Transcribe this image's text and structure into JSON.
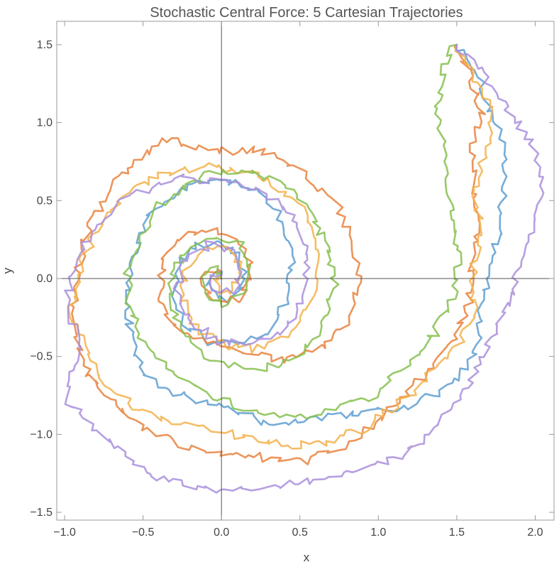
{
  "chart_data": {
    "type": "line",
    "title": "Stochastic Central Force: 5 Cartesian Trajectories",
    "xlabel": "x",
    "ylabel": "y",
    "xlim": [
      -1.05,
      2.12
    ],
    "ylim": [
      -1.55,
      1.65
    ],
    "xticks": [
      -1.0,
      -0.5,
      0.0,
      0.5,
      1.0,
      1.5,
      2.0
    ],
    "xtick_labels": [
      "−1.0",
      "−0.5",
      "0.0",
      "0.5",
      "1.0",
      "1.5",
      "2.0"
    ],
    "yticks": [
      -1.5,
      -1.0,
      -0.5,
      0.0,
      0.5,
      1.0,
      1.5
    ],
    "ytick_labels": [
      "−1.5",
      "−1.0",
      "−0.5",
      "0.0",
      "0.5",
      "1.0",
      "1.5"
    ],
    "grid": false,
    "axes_through_origin": true,
    "series": [
      {
        "color": "#5e9fd1",
        "start": [
          1.5,
          1.5
        ],
        "points": [
          [
            1.5,
            1.5
          ],
          [
            1.6,
            1.38
          ],
          [
            1.7,
            1.12
          ],
          [
            1.78,
            0.92
          ],
          [
            1.8,
            0.62
          ],
          [
            1.78,
            0.38
          ],
          [
            1.72,
            0.1
          ],
          [
            1.66,
            -0.2
          ],
          [
            1.62,
            -0.48
          ],
          [
            1.5,
            -0.66
          ],
          [
            1.35,
            -0.75
          ],
          [
            1.15,
            -0.85
          ],
          [
            0.95,
            -0.86
          ],
          [
            0.75,
            -0.88
          ],
          [
            0.55,
            -0.9
          ],
          [
            0.35,
            -0.95
          ],
          [
            0.1,
            -0.85
          ],
          [
            -0.15,
            -0.78
          ],
          [
            -0.35,
            -0.72
          ],
          [
            -0.5,
            -0.6
          ],
          [
            -0.58,
            -0.38
          ],
          [
            -0.6,
            -0.1
          ],
          [
            -0.55,
            0.18
          ],
          [
            -0.45,
            0.42
          ],
          [
            -0.25,
            0.58
          ],
          [
            0.0,
            0.64
          ],
          [
            0.22,
            0.58
          ],
          [
            0.38,
            0.4
          ],
          [
            0.45,
            0.15
          ],
          [
            0.42,
            -0.12
          ],
          [
            0.32,
            -0.32
          ],
          [
            0.15,
            -0.42
          ],
          [
            -0.05,
            -0.42
          ],
          [
            -0.22,
            -0.32
          ],
          [
            -0.3,
            -0.12
          ],
          [
            -0.28,
            0.08
          ],
          [
            -0.18,
            0.2
          ],
          [
            -0.05,
            0.24
          ],
          [
            0.08,
            0.18
          ],
          [
            0.14,
            0.05
          ],
          [
            0.12,
            -0.08
          ],
          [
            0.02,
            -0.14
          ],
          [
            -0.06,
            -0.1
          ],
          [
            -0.08,
            -0.02
          ],
          [
            -0.04,
            0.04
          ],
          [
            0.0,
            0.02
          ]
        ]
      },
      {
        "color": "#e9833e",
        "start": [
          1.5,
          1.5
        ],
        "points": [
          [
            1.5,
            1.5
          ],
          [
            1.58,
            1.3
          ],
          [
            1.66,
            1.08
          ],
          [
            1.6,
            0.85
          ],
          [
            1.6,
            0.6
          ],
          [
            1.65,
            0.35
          ],
          [
            1.6,
            0.1
          ],
          [
            1.58,
            -0.15
          ],
          [
            1.48,
            -0.4
          ],
          [
            1.3,
            -0.6
          ],
          [
            1.1,
            -0.82
          ],
          [
            0.9,
            -1.0
          ],
          [
            0.7,
            -1.1
          ],
          [
            0.5,
            -1.18
          ],
          [
            0.28,
            -1.15
          ],
          [
            0.05,
            -1.12
          ],
          [
            -0.2,
            -1.08
          ],
          [
            -0.45,
            -0.98
          ],
          [
            -0.68,
            -0.82
          ],
          [
            -0.85,
            -0.6
          ],
          [
            -0.95,
            -0.3
          ],
          [
            -0.92,
            0.05
          ],
          [
            -0.82,
            0.4
          ],
          [
            -0.62,
            0.7
          ],
          [
            -0.35,
            0.9
          ],
          [
            -0.05,
            0.82
          ],
          [
            0.25,
            0.82
          ],
          [
            0.5,
            0.7
          ],
          [
            0.72,
            0.5
          ],
          [
            0.85,
            0.22
          ],
          [
            0.88,
            -0.05
          ],
          [
            0.8,
            -0.28
          ],
          [
            0.62,
            -0.45
          ],
          [
            0.4,
            -0.52
          ],
          [
            0.15,
            -0.48
          ],
          [
            -0.1,
            -0.42
          ],
          [
            -0.32,
            -0.3
          ],
          [
            -0.4,
            -0.08
          ],
          [
            -0.36,
            0.15
          ],
          [
            -0.22,
            0.28
          ],
          [
            -0.02,
            0.3
          ],
          [
            0.15,
            0.2
          ],
          [
            0.2,
            0.02
          ],
          [
            0.12,
            -0.12
          ],
          [
            -0.02,
            -0.16
          ],
          [
            -0.12,
            -0.08
          ],
          [
            -0.1,
            0.04
          ],
          [
            -0.02,
            0.06
          ],
          [
            0.0,
            0.0
          ]
        ]
      },
      {
        "color": "#f3b24b",
        "start": [
          1.5,
          1.5
        ],
        "points": [
          [
            1.5,
            1.5
          ],
          [
            1.62,
            1.28
          ],
          [
            1.74,
            1.05
          ],
          [
            1.68,
            0.8
          ],
          [
            1.62,
            0.55
          ],
          [
            1.66,
            0.3
          ],
          [
            1.6,
            0.05
          ],
          [
            1.62,
            -0.2
          ],
          [
            1.5,
            -0.45
          ],
          [
            1.3,
            -0.65
          ],
          [
            1.1,
            -0.82
          ],
          [
            0.88,
            -0.98
          ],
          [
            0.65,
            -1.05
          ],
          [
            0.42,
            -1.08
          ],
          [
            0.2,
            -1.02
          ],
          [
            -0.05,
            -0.98
          ],
          [
            -0.3,
            -0.92
          ],
          [
            -0.52,
            -0.85
          ],
          [
            -0.72,
            -0.72
          ],
          [
            -0.85,
            -0.5
          ],
          [
            -0.95,
            -0.2
          ],
          [
            -0.9,
            0.1
          ],
          [
            -0.78,
            0.35
          ],
          [
            -0.6,
            0.55
          ],
          [
            -0.35,
            0.68
          ],
          [
            -0.05,
            0.72
          ],
          [
            0.25,
            0.66
          ],
          [
            0.48,
            0.5
          ],
          [
            0.6,
            0.28
          ],
          [
            0.62,
            0.02
          ],
          [
            0.55,
            -0.22
          ],
          [
            0.4,
            -0.38
          ],
          [
            0.2,
            -0.45
          ],
          [
            0.0,
            -0.42
          ],
          [
            -0.18,
            -0.3
          ],
          [
            -0.26,
            -0.1
          ],
          [
            -0.22,
            0.1
          ],
          [
            -0.1,
            0.2
          ],
          [
            0.05,
            0.18
          ],
          [
            0.12,
            0.05
          ],
          [
            0.08,
            -0.08
          ],
          [
            -0.02,
            -0.1
          ],
          [
            -0.06,
            -0.02
          ],
          [
            0.0,
            0.02
          ]
        ]
      },
      {
        "color": "#86bf4f",
        "start": [
          1.5,
          1.5
        ],
        "points": [
          [
            1.5,
            1.5
          ],
          [
            1.42,
            1.38
          ],
          [
            1.38,
            1.15
          ],
          [
            1.4,
            0.92
          ],
          [
            1.42,
            0.7
          ],
          [
            1.46,
            0.45
          ],
          [
            1.52,
            0.18
          ],
          [
            1.48,
            -0.1
          ],
          [
            1.36,
            -0.35
          ],
          [
            1.18,
            -0.55
          ],
          [
            0.98,
            -0.75
          ],
          [
            0.78,
            -0.82
          ],
          [
            0.55,
            -0.9
          ],
          [
            0.32,
            -0.88
          ],
          [
            0.1,
            -0.82
          ],
          [
            -0.12,
            -0.72
          ],
          [
            -0.32,
            -0.6
          ],
          [
            -0.48,
            -0.45
          ],
          [
            -0.58,
            -0.22
          ],
          [
            -0.6,
            0.05
          ],
          [
            -0.52,
            0.3
          ],
          [
            -0.35,
            0.52
          ],
          [
            -0.12,
            0.65
          ],
          [
            0.12,
            0.7
          ],
          [
            0.35,
            0.62
          ],
          [
            0.55,
            0.45
          ],
          [
            0.68,
            0.22
          ],
          [
            0.72,
            -0.05
          ],
          [
            0.65,
            -0.3
          ],
          [
            0.48,
            -0.5
          ],
          [
            0.25,
            -0.58
          ],
          [
            0.0,
            -0.55
          ],
          [
            -0.2,
            -0.42
          ],
          [
            -0.32,
            -0.22
          ],
          [
            -0.32,
            0.02
          ],
          [
            -0.22,
            0.2
          ],
          [
            -0.05,
            0.28
          ],
          [
            0.12,
            0.22
          ],
          [
            0.2,
            0.06
          ],
          [
            0.15,
            -0.1
          ],
          [
            0.02,
            -0.16
          ],
          [
            -0.1,
            -0.1
          ],
          [
            -0.1,
            0.02
          ],
          [
            -0.02,
            0.06
          ],
          [
            0.0,
            0.0
          ]
        ]
      },
      {
        "color": "#a98fdc",
        "start": [
          1.5,
          1.5
        ],
        "points": [
          [
            1.5,
            1.5
          ],
          [
            1.68,
            1.28
          ],
          [
            1.85,
            1.05
          ],
          [
            2.0,
            0.82
          ],
          [
            2.05,
            0.6
          ],
          [
            1.98,
            0.35
          ],
          [
            1.9,
            0.1
          ],
          [
            1.82,
            -0.15
          ],
          [
            1.72,
            -0.4
          ],
          [
            1.6,
            -0.65
          ],
          [
            1.48,
            -0.85
          ],
          [
            1.3,
            -1.02
          ],
          [
            1.1,
            -1.15
          ],
          [
            0.85,
            -1.25
          ],
          [
            0.6,
            -1.3
          ],
          [
            0.35,
            -1.32
          ],
          [
            0.1,
            -1.35
          ],
          [
            -0.15,
            -1.35
          ],
          [
            -0.4,
            -1.28
          ],
          [
            -0.62,
            -1.12
          ],
          [
            -0.82,
            -0.95
          ],
          [
            -0.98,
            -0.78
          ],
          [
            -0.92,
            -0.45
          ],
          [
            -0.98,
            -0.1
          ],
          [
            -0.9,
            0.2
          ],
          [
            -0.75,
            0.4
          ],
          [
            -0.55,
            0.55
          ],
          [
            -0.3,
            0.65
          ],
          [
            -0.02,
            0.62
          ],
          [
            0.25,
            0.55
          ],
          [
            0.45,
            0.4
          ],
          [
            0.55,
            0.15
          ],
          [
            0.52,
            -0.12
          ],
          [
            0.4,
            -0.32
          ],
          [
            0.2,
            -0.42
          ],
          [
            -0.02,
            -0.4
          ],
          [
            -0.2,
            -0.28
          ],
          [
            -0.28,
            -0.08
          ],
          [
            -0.22,
            0.12
          ],
          [
            -0.08,
            0.22
          ],
          [
            0.08,
            0.18
          ],
          [
            0.14,
            0.04
          ],
          [
            0.08,
            -0.08
          ],
          [
            -0.04,
            -0.1
          ],
          [
            -0.08,
            0.0
          ],
          [
            0.0,
            0.02
          ]
        ]
      }
    ]
  }
}
